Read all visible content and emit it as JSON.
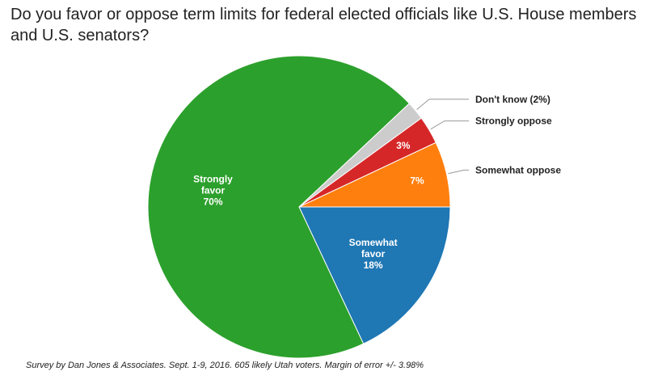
{
  "chart_data": {
    "type": "pie",
    "title": "Do you favor or oppose term limits for federal elected officials like U.S. House members and U.S. senators?",
    "slices": [
      {
        "label": "Somewhat favor",
        "value": 18,
        "color": "#1f77b4",
        "inside_text": [
          "Somewhat",
          "favor",
          "18%"
        ],
        "outside_label": ""
      },
      {
        "label": "Strongly favor",
        "value": 70,
        "color": "#2ca02c",
        "inside_text": [
          "Strongly",
          "favor",
          "70%"
        ],
        "outside_label": ""
      },
      {
        "label": "Don't know",
        "value": 2,
        "color": "#cccccc",
        "inside_text": [],
        "outside_label": "Don't know (2%)"
      },
      {
        "label": "Strongly oppose",
        "value": 3,
        "color": "#d62728",
        "inside_text": [
          "3%"
        ],
        "outside_label": "Strongly oppose"
      },
      {
        "label": "Somewhat oppose",
        "value": 7,
        "color": "#ff7f0e",
        "inside_text": [
          "7%"
        ],
        "outside_label": "Somewhat oppose"
      }
    ],
    "source_note": "Survey by Dan Jones & Associates. Sept. 1-9, 2016. 605 likely Utah voters. Margin of error +/- 3.98%"
  }
}
